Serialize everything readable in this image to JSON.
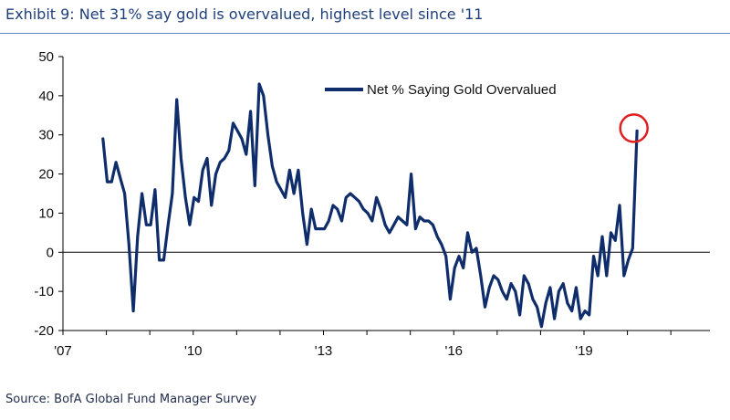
{
  "title": "Exhibit 9: Net 31% say gold is overvalued, highest level since '11",
  "source": "Source: BofA Global Fund Manager Survey",
  "colors": {
    "line": "#0f2d6b",
    "highlight": "#e02020",
    "title": "#1f3f7a",
    "rule": "#5b86c4"
  },
  "chart_data": {
    "type": "line",
    "title": "Exhibit 9: Net 31% say gold is overvalued, highest level since '11",
    "xlabel": "",
    "ylabel": "",
    "xlim": [
      2007.0,
      2021.9
    ],
    "ylim": [
      -20,
      50
    ],
    "yticks": [
      50,
      40,
      30,
      20,
      10,
      0,
      -10,
      -20
    ],
    "xticks": [
      {
        "value": 2007.0,
        "label": "'07"
      },
      {
        "value": 2010.0,
        "label": "'10"
      },
      {
        "value": 2013.0,
        "label": "'13"
      },
      {
        "value": 2016.0,
        "label": "'16"
      },
      {
        "value": 2019.0,
        "label": "'19"
      }
    ],
    "legend": {
      "position": "top-center",
      "entries": [
        "Net % Saying Gold Overvalued"
      ]
    },
    "annotations": [
      {
        "type": "circle",
        "x": 2020.17,
        "y": 31,
        "note": "latest reading highlighted"
      }
    ],
    "series": [
      {
        "name": "Net % Saying Gold Overvalued",
        "x": [
          2007.92,
          2008.02,
          2008.12,
          2008.22,
          2008.32,
          2008.42,
          2008.52,
          2008.62,
          2008.72,
          2008.82,
          2008.92,
          2009.02,
          2009.12,
          2009.22,
          2009.32,
          2009.42,
          2009.52,
          2009.62,
          2009.72,
          2009.82,
          2009.92,
          2010.02,
          2010.12,
          2010.22,
          2010.32,
          2010.42,
          2010.52,
          2010.62,
          2010.72,
          2010.82,
          2010.92,
          2011.02,
          2011.12,
          2011.22,
          2011.32,
          2011.42,
          2011.52,
          2011.62,
          2011.72,
          2011.82,
          2011.92,
          2012.02,
          2012.12,
          2012.22,
          2012.32,
          2012.42,
          2012.52,
          2012.62,
          2012.72,
          2012.82,
          2012.92,
          2013.02,
          2013.12,
          2013.22,
          2013.32,
          2013.42,
          2013.52,
          2013.62,
          2013.72,
          2013.82,
          2013.92,
          2014.02,
          2014.12,
          2014.22,
          2014.32,
          2014.42,
          2014.52,
          2014.62,
          2014.72,
          2014.82,
          2014.92,
          2015.02,
          2015.12,
          2015.22,
          2015.32,
          2015.42,
          2015.52,
          2015.62,
          2015.72,
          2015.82,
          2015.92,
          2016.02,
          2016.12,
          2016.22,
          2016.32,
          2016.42,
          2016.52,
          2016.62,
          2016.72,
          2016.82,
          2016.92,
          2017.02,
          2017.12,
          2017.22,
          2017.32,
          2017.42,
          2017.52,
          2017.62,
          2017.72,
          2017.82,
          2017.92,
          2018.02,
          2018.12,
          2018.22,
          2018.32,
          2018.42,
          2018.52,
          2018.62,
          2018.72,
          2018.82,
          2018.92,
          2019.02,
          2019.12,
          2019.22,
          2019.32,
          2019.42,
          2019.52,
          2019.62,
          2019.72,
          2019.82,
          2019.92,
          2020.02,
          2020.12,
          2020.22
        ],
        "y": [
          29,
          18,
          18,
          23,
          19,
          15,
          2,
          -15,
          4,
          15,
          7,
          7,
          16,
          -2,
          -2,
          7,
          15,
          39,
          24,
          14,
          7,
          14,
          13,
          21,
          24,
          12,
          20,
          23,
          24,
          26,
          33,
          31,
          29,
          25,
          36,
          17,
          43,
          40,
          30,
          22,
          18,
          16,
          14,
          21,
          15,
          21,
          10,
          2,
          11,
          6,
          6,
          6,
          8,
          12,
          11,
          8,
          14,
          15,
          14,
          13,
          11,
          10,
          8,
          14,
          11,
          7,
          5,
          7,
          9,
          8,
          7,
          20,
          6,
          9,
          8,
          8,
          7,
          4,
          2,
          -1,
          -12,
          -4,
          -1,
          -4,
          5,
          0,
          1,
          -6,
          -14,
          -9,
          -6,
          -7,
          -10,
          -12,
          -8,
          -10,
          -16,
          -6,
          -8,
          -12,
          -14,
          -19,
          -13,
          -9,
          -17,
          -10,
          -8,
          -13,
          -15,
          -9,
          -17,
          -15,
          -16,
          -1,
          -6,
          4,
          -6,
          5,
          3,
          12,
          -6,
          -2,
          1,
          31
        ]
      }
    ]
  }
}
